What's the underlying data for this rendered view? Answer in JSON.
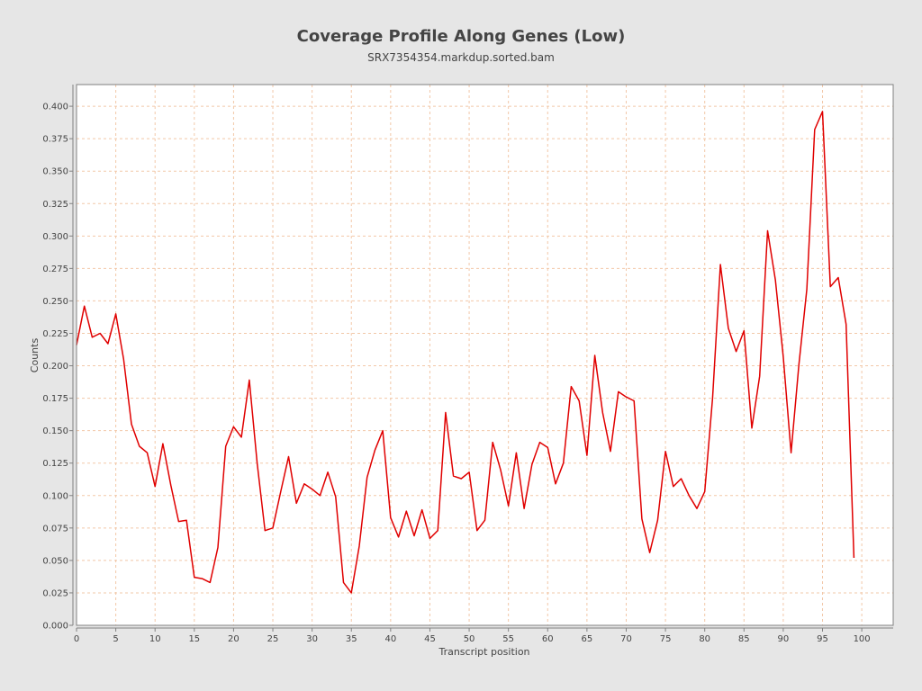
{
  "chart_data": {
    "type": "line",
    "title": "Coverage Profile Along Genes (Low)",
    "subtitle": "SRX7354354.markdup.sorted.bam",
    "xlabel": "Transcript position",
    "ylabel": "Counts",
    "xlim": [
      0,
      104
    ],
    "ylim": [
      0,
      0.4167
    ],
    "x_ticks": [
      0,
      5,
      10,
      15,
      20,
      25,
      30,
      35,
      40,
      45,
      50,
      55,
      60,
      65,
      70,
      75,
      80,
      85,
      90,
      95,
      100
    ],
    "y_ticks": [
      0.0,
      0.025,
      0.05,
      0.075,
      0.1,
      0.125,
      0.15,
      0.175,
      0.2,
      0.225,
      0.25,
      0.275,
      0.3,
      0.325,
      0.35,
      0.375,
      0.4
    ],
    "y_tick_labels": [
      "0.000",
      "0.025",
      "0.050",
      "0.075",
      "0.100",
      "0.125",
      "0.150",
      "0.175",
      "0.200",
      "0.225",
      "0.250",
      "0.275",
      "0.300",
      "0.325",
      "0.350",
      "0.375",
      "0.400"
    ],
    "grid": true,
    "series": [
      {
        "color": "#e00000",
        "x": [
          0,
          1,
          2,
          3,
          4,
          5,
          6,
          7,
          8,
          9,
          10,
          11,
          12,
          13,
          14,
          15,
          16,
          17,
          18,
          19,
          20,
          21,
          22,
          23,
          24,
          25,
          26,
          27,
          28,
          29,
          30,
          31,
          32,
          33,
          34,
          35,
          36,
          37,
          38,
          39,
          40,
          41,
          42,
          43,
          44,
          45,
          46,
          47,
          48,
          49,
          50,
          51,
          52,
          53,
          54,
          55,
          56,
          57,
          58,
          59,
          60,
          61,
          62,
          63,
          64,
          65,
          66,
          67,
          68,
          69,
          70,
          71,
          72,
          73,
          74,
          75,
          76,
          77,
          78,
          79,
          80,
          81,
          82,
          83,
          84,
          85,
          86,
          87,
          88,
          89,
          90,
          91,
          92,
          93,
          94,
          95,
          96,
          97,
          98,
          99
        ],
        "values": [
          0.216,
          0.246,
          0.222,
          0.225,
          0.217,
          0.24,
          0.205,
          0.155,
          0.138,
          0.133,
          0.107,
          0.14,
          0.108,
          0.08,
          0.081,
          0.037,
          0.036,
          0.033,
          0.06,
          0.138,
          0.153,
          0.145,
          0.189,
          0.125,
          0.073,
          0.075,
          0.103,
          0.13,
          0.094,
          0.109,
          0.105,
          0.1,
          0.118,
          0.099,
          0.033,
          0.025,
          0.061,
          0.114,
          0.135,
          0.15,
          0.083,
          0.068,
          0.088,
          0.069,
          0.089,
          0.067,
          0.073,
          0.164,
          0.115,
          0.113,
          0.118,
          0.073,
          0.081,
          0.141,
          0.12,
          0.092,
          0.133,
          0.09,
          0.124,
          0.141,
          0.137,
          0.109,
          0.125,
          0.184,
          0.173,
          0.131,
          0.208,
          0.164,
          0.134,
          0.18,
          0.176,
          0.173,
          0.082,
          0.056,
          0.081,
          0.134,
          0.107,
          0.113,
          0.1,
          0.09,
          0.103,
          0.175,
          0.278,
          0.229,
          0.211,
          0.227,
          0.152,
          0.192,
          0.304,
          0.266,
          0.207,
          0.133,
          0.201,
          0.259,
          0.382,
          0.396,
          0.261,
          0.268,
          0.232,
          0.052
        ]
      }
    ]
  }
}
